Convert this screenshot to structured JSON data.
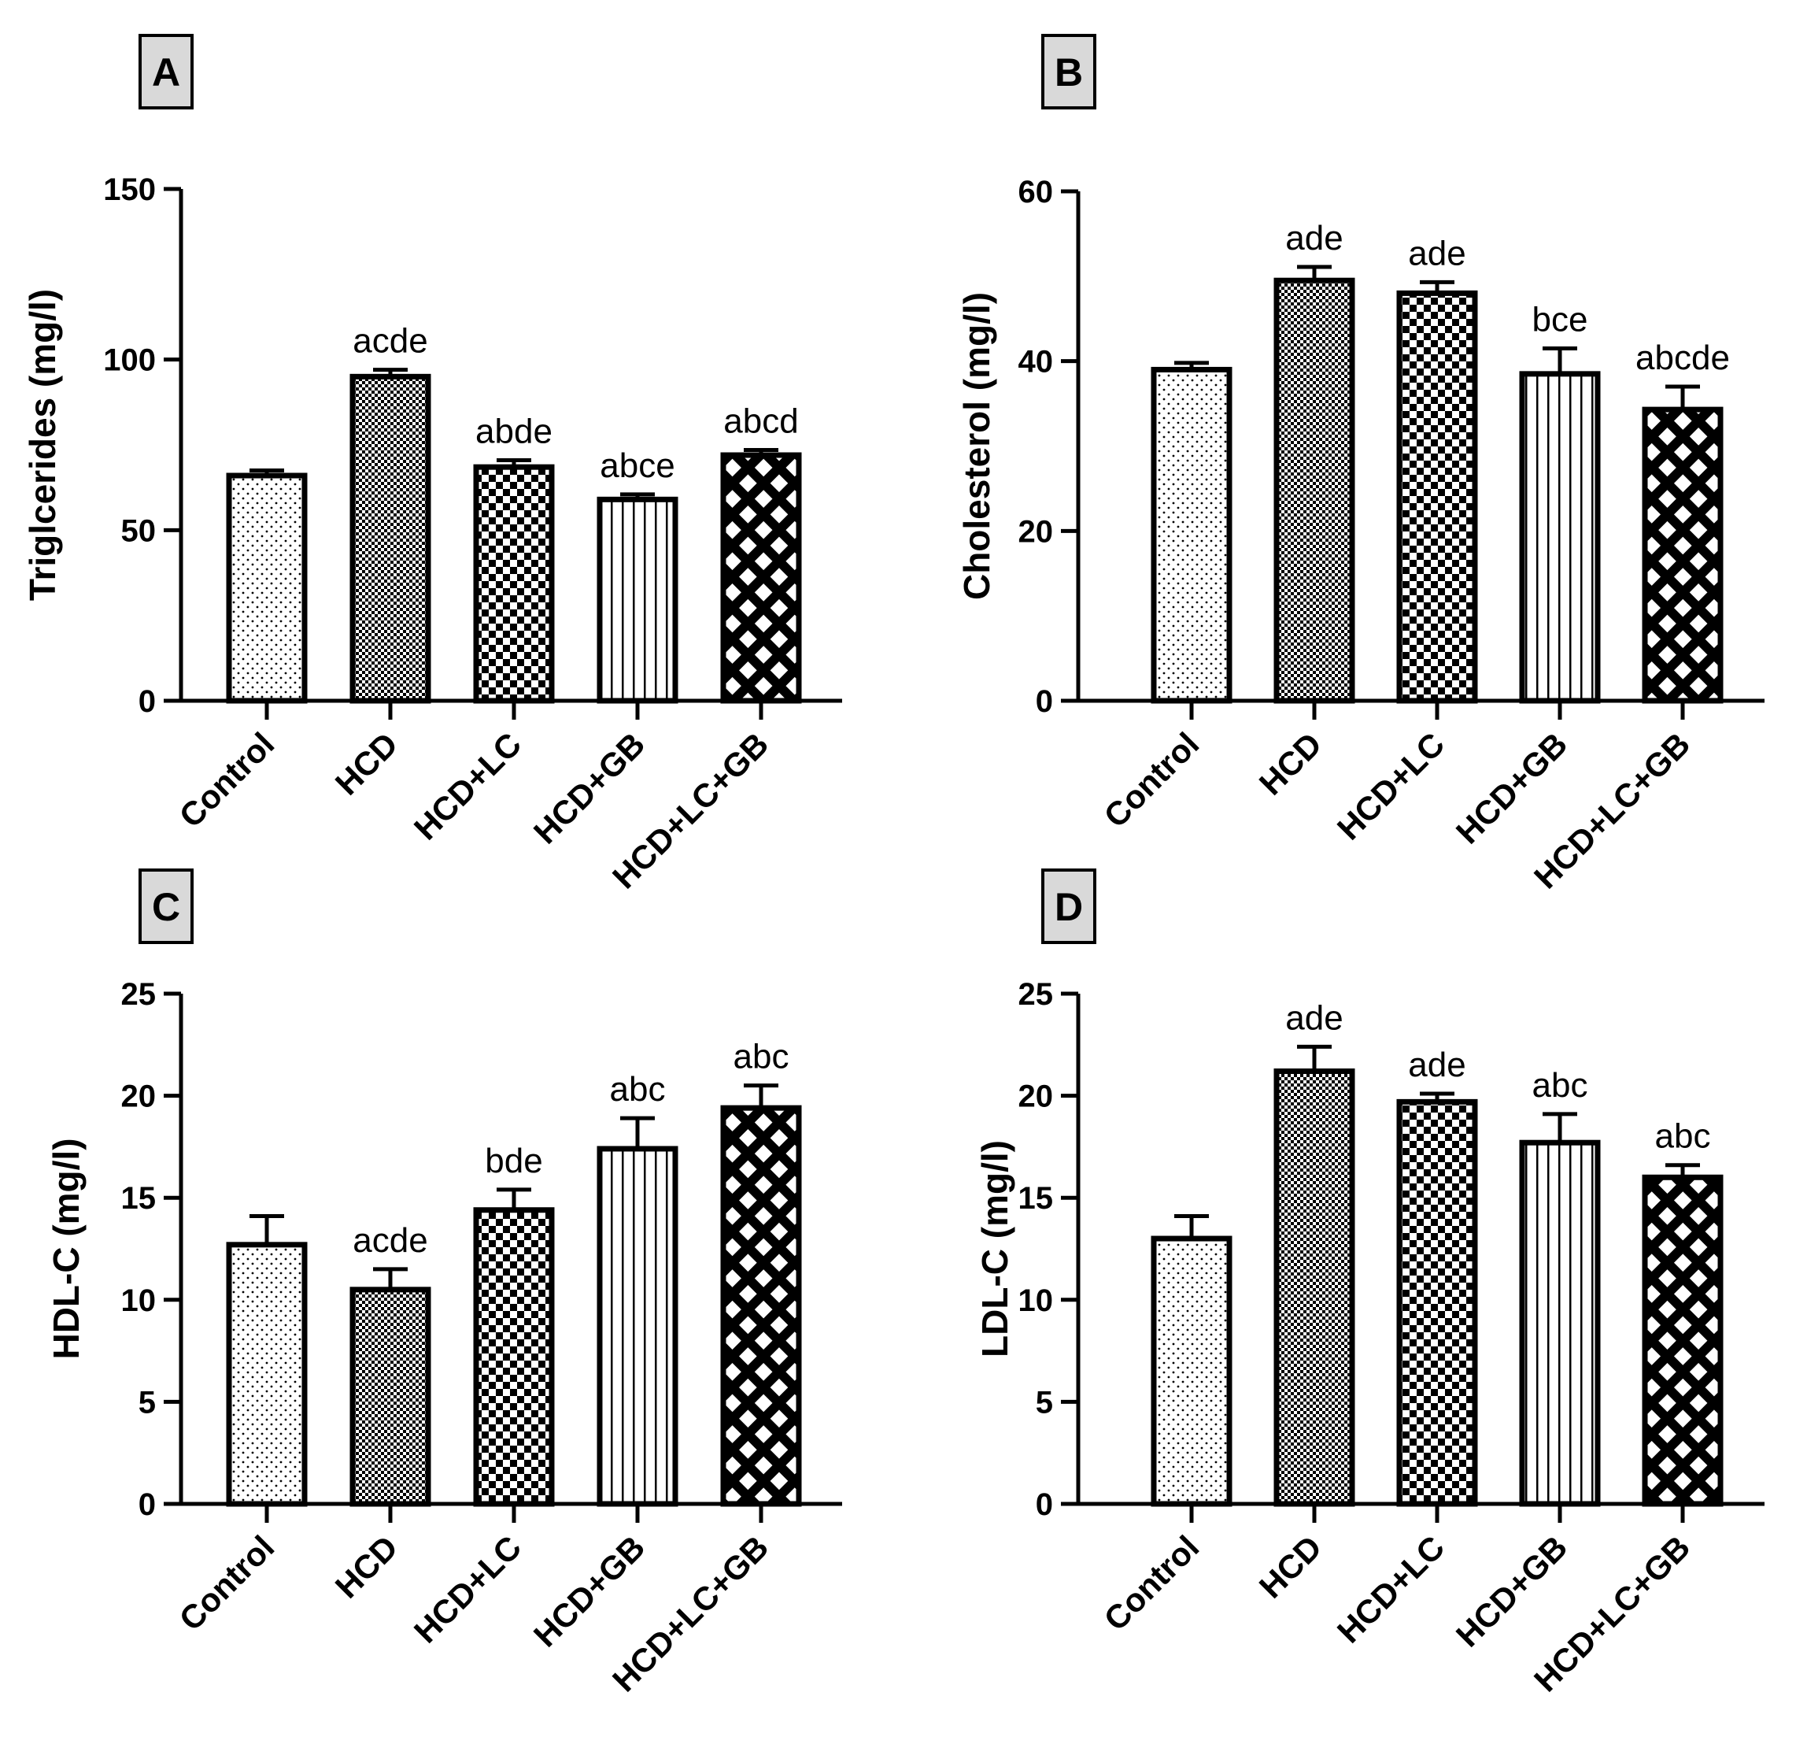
{
  "chart_data": [
    {
      "panel_label": "A",
      "type": "bar",
      "categories": [
        "Control",
        "HCD",
        "HCD+LC",
        "HCD+GB",
        "HCD+LC+GB"
      ],
      "values": [
        66,
        95,
        68.5,
        59,
        72
      ],
      "errors": [
        1.5,
        2,
        2,
        1.5,
        1.5
      ],
      "significance": [
        "",
        "acde",
        "abde",
        "abce",
        "abcd"
      ],
      "ylabel": "Triglcerides (mg/l)",
      "ylim": [
        0,
        150
      ],
      "yticks": [
        0,
        50,
        100,
        150
      ],
      "legend": "none"
    },
    {
      "panel_label": "B",
      "type": "bar",
      "categories": [
        "Control",
        "HCD",
        "HCD+LC",
        "HCD+GB",
        "HCD+LC+GB"
      ],
      "values": [
        39,
        49.5,
        48,
        38.5,
        34.3
      ],
      "errors": [
        0.8,
        1.6,
        1.3,
        3,
        2.7
      ],
      "significance": [
        "",
        "ade",
        "ade",
        "bce",
        "abcde"
      ],
      "ylabel": "Cholesterol (mg/l)",
      "ylim": [
        0,
        60
      ],
      "yticks": [
        0,
        20,
        40,
        60
      ],
      "legend": "none"
    },
    {
      "panel_label": "C",
      "type": "bar",
      "categories": [
        "Control",
        "HCD",
        "HCD+LC",
        "HCD+GB",
        "HCD+LC+GB"
      ],
      "values": [
        12.7,
        10.5,
        14.4,
        17.4,
        19.4
      ],
      "errors": [
        1.4,
        1,
        1,
        1.5,
        1.1
      ],
      "significance": [
        "",
        "acde",
        "bde",
        "abc",
        "abc"
      ],
      "ylabel": "HDL-C (mg/l)",
      "ylim": [
        0,
        25
      ],
      "yticks": [
        0,
        5,
        10,
        15,
        20,
        25
      ],
      "legend": "none"
    },
    {
      "panel_label": "D",
      "type": "bar",
      "categories": [
        "Control",
        "HCD",
        "HCD+LC",
        "HCD+GB",
        "HCD+LC+GB"
      ],
      "values": [
        13,
        21.2,
        19.7,
        17.7,
        16
      ],
      "errors": [
        1.1,
        1.2,
        0.4,
        1.4,
        0.6
      ],
      "significance": [
        "",
        "ade",
        "ade",
        "abc",
        "abc"
      ],
      "ylabel": "LDL-C (mg/l)",
      "ylim": [
        0,
        25
      ],
      "yticks": [
        0,
        5,
        10,
        15,
        20,
        25
      ],
      "legend": "none"
    }
  ]
}
